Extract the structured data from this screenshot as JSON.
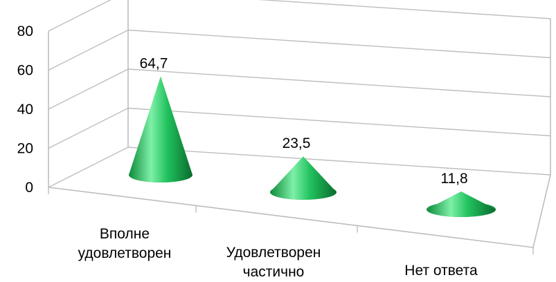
{
  "chart_data": {
    "type": "bar",
    "shape": "cone-3d",
    "categories": [
      "Вполне удовлетворен",
      "Удовлетворен частично",
      "Нет ответа"
    ],
    "category_lines": [
      [
        "Вполне",
        "удовлетворен"
      ],
      [
        "Удовлетворен",
        "частично"
      ],
      [
        "Нет ответа"
      ]
    ],
    "values": [
      64.7,
      23.5,
      11.8
    ],
    "data_labels": [
      "64,7",
      "23,5",
      "11,8"
    ],
    "yticks": [
      0,
      20,
      40,
      60,
      80
    ],
    "ylim": [
      0,
      80
    ],
    "grid": true,
    "legend": "none",
    "colors": {
      "cone_light": "#7ef0a8",
      "cone_mid": "#1fbf5c",
      "cone_dark": "#0a6b2c",
      "grid": "#bdbdbd"
    }
  }
}
